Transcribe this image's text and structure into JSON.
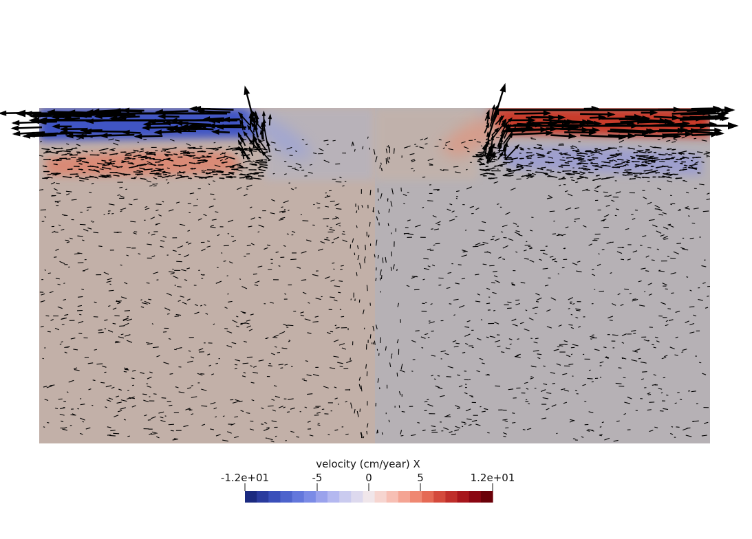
{
  "colorbar": {
    "title": "velocity (cm/year) X",
    "ticks": [
      {
        "value": -12,
        "label": "-1.2e+01"
      },
      {
        "value": -5,
        "label": "-5"
      },
      {
        "value": 0,
        "label": "0"
      },
      {
        "value": 5,
        "label": "5"
      },
      {
        "value": 12,
        "label": "1.2e+01"
      }
    ],
    "range": [
      -12,
      12
    ],
    "colors": [
      "#1b2a80",
      "#2a3b9e",
      "#3a4fba",
      "#4d63cc",
      "#6377dc",
      "#7b8be6",
      "#9aa2ec",
      "#b4b8f0",
      "#cacbef",
      "#ddd9ee",
      "#f0e6ea",
      "#f6d5d0",
      "#f7bfb4",
      "#f4a493",
      "#ef8872",
      "#e56a55",
      "#d44a3c",
      "#bf2e2a",
      "#a7161c",
      "#8a0612",
      "#6a0008"
    ]
  },
  "field": {
    "left_half_color": "#c2b0a8",
    "right_half_color": "#b6b1b5",
    "surface_bands": [
      {
        "side": "left",
        "polarity": "negative",
        "color": "#3f55c4"
      },
      {
        "side": "left",
        "polarity": "positive",
        "color": "#d98a76"
      },
      {
        "side": "right",
        "polarity": "positive",
        "color": "#c83a2c"
      },
      {
        "side": "right",
        "polarity": "negative",
        "color": "#9e9fce"
      }
    ]
  }
}
